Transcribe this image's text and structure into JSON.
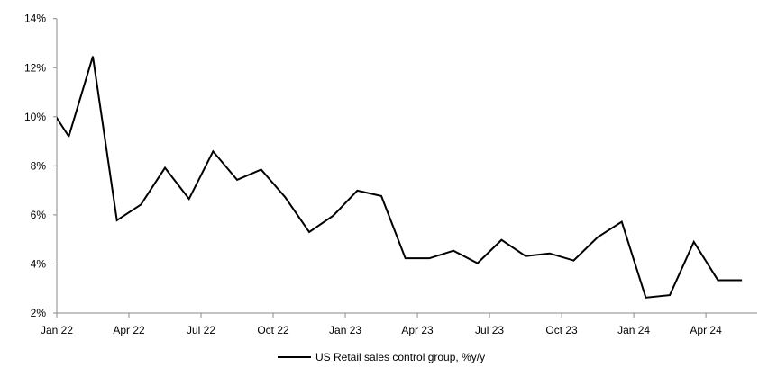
{
  "chart_data": {
    "type": "line",
    "title": "",
    "xlabel": "",
    "ylabel": "",
    "ylim": [
      2,
      14
    ],
    "yticks": [
      2,
      4,
      6,
      8,
      10,
      12,
      14
    ],
    "ytick_labels": [
      "2%",
      "4%",
      "6%",
      "8%",
      "10%",
      "12%",
      "14%"
    ],
    "xtick_labels": [
      "Jan 22",
      "Apr 22",
      "Jul 22",
      "Oct 22",
      "Jan 23",
      "Apr 23",
      "Jul 23",
      "Oct 23",
      "Jan 24",
      "Apr 24"
    ],
    "grid": false,
    "legend_position": "bottom-center",
    "series": [
      {
        "name": "US Retail sales control group, %y/y",
        "color": "#000000",
        "x": [
          "Dec 21",
          "Jan 22",
          "Feb 22",
          "Mar 22",
          "Apr 22",
          "May 22",
          "Jun 22",
          "Jul 22",
          "Aug 22",
          "Sep 22",
          "Oct 22",
          "Nov 22",
          "Dec 22",
          "Jan 23",
          "Feb 23",
          "Mar 23",
          "Apr 23",
          "May 23",
          "Jun 23",
          "Jul 23",
          "Aug 23",
          "Sep 23",
          "Oct 23",
          "Nov 23",
          "Dec 23",
          "Jan 24",
          "Feb 24",
          "Mar 24",
          "Apr 24",
          "May 24"
        ],
        "values": [
          10.7,
          9.2,
          12.46,
          5.78,
          6.42,
          7.92,
          6.65,
          8.59,
          7.43,
          7.85,
          6.72,
          5.3,
          5.97,
          6.99,
          6.77,
          4.23,
          4.23,
          4.54,
          4.03,
          4.98,
          4.32,
          4.43,
          4.14,
          5.09,
          5.72,
          2.63,
          2.73,
          4.9,
          3.34,
          3.34
        ]
      }
    ]
  }
}
